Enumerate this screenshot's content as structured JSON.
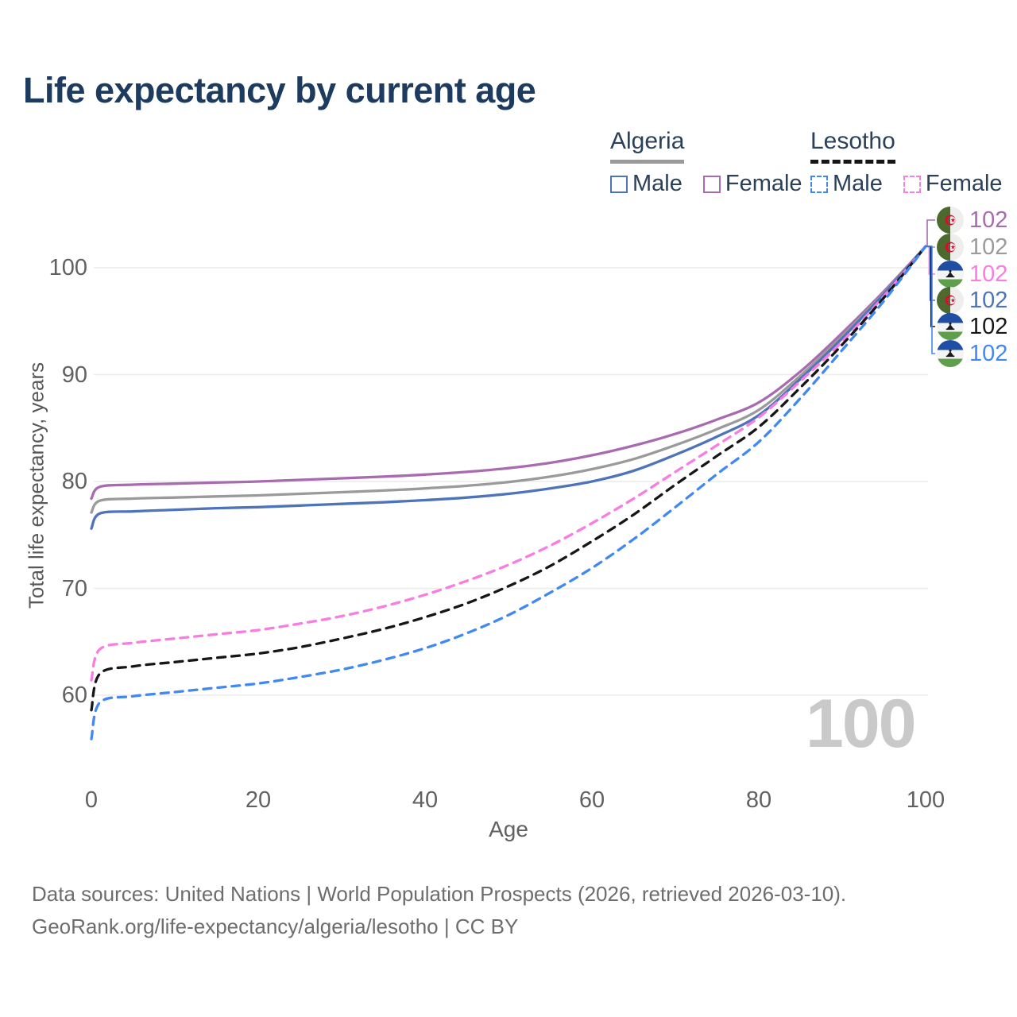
{
  "title": "Life expectancy by current age",
  "legend": {
    "groups": [
      {
        "country": "Algeria",
        "line_style": "solid",
        "underline_color": "#9a9a9a",
        "items": [
          {
            "label": "Male",
            "color": "#4d74bb"
          },
          {
            "label": "Female",
            "color": "#a86bb0"
          }
        ]
      },
      {
        "country": "Lesotho",
        "line_style": "dashed",
        "underline_color": "#161616",
        "items": [
          {
            "label": "Male",
            "color": "#4189f2"
          },
          {
            "label": "Female",
            "color": "#f97ce0"
          }
        ]
      }
    ]
  },
  "y_axis": {
    "label": "Total life expectancy, years",
    "ticks": [
      100,
      90,
      80,
      70,
      60
    ]
  },
  "x_axis": {
    "label": "Age",
    "ticks": [
      0,
      20,
      40,
      60,
      80,
      100
    ]
  },
  "watermark": "100",
  "end_labels": [
    {
      "value": "102",
      "flag": "algeria",
      "series": "Algeria Female",
      "color": "#a86bb0"
    },
    {
      "value": "102",
      "flag": "algeria",
      "series": "Algeria Both sexes",
      "color": "#9a9a9a"
    },
    {
      "value": "102",
      "flag": "lesotho",
      "series": "Lesotho Female",
      "color": "#f97ce0"
    },
    {
      "value": "102",
      "flag": "algeria",
      "series": "Algeria Male",
      "color": "#4d74bb"
    },
    {
      "value": "102",
      "flag": "lesotho",
      "series": "Lesotho Both sexes",
      "color": "#161616"
    },
    {
      "value": "102",
      "flag": "lesotho",
      "series": "Lesotho Male",
      "color": "#4189f2"
    }
  ],
  "footer": {
    "line1": "Data sources: United Nations | World Population Prospects (2026, retrieved 2026-03-10).",
    "line2": "GeoRank.org/life-expectancy/algeria/lesotho | CC BY"
  },
  "chart_data": {
    "type": "line",
    "title": "Life expectancy by current age",
    "xlabel": "Age",
    "ylabel": "Total life expectancy, years",
    "xlim": [
      0,
      100
    ],
    "ylim": [
      55,
      103
    ],
    "x_ticks": [
      0,
      20,
      40,
      60,
      80,
      100
    ],
    "y_ticks": [
      60,
      70,
      80,
      90,
      100
    ],
    "grid": "horizontal",
    "legend_position": "top-right",
    "end_value_all_series": 102,
    "series": [
      {
        "name": "Algeria Female",
        "country": "Algeria",
        "sex": "Female",
        "color": "#a86bb0",
        "dash": "solid",
        "points": [
          [
            0,
            78.4
          ],
          [
            1,
            79.5
          ],
          [
            5,
            79.7
          ],
          [
            10,
            79.8
          ],
          [
            15,
            79.9
          ],
          [
            20,
            80.0
          ],
          [
            25,
            80.15
          ],
          [
            30,
            80.3
          ],
          [
            35,
            80.45
          ],
          [
            40,
            80.65
          ],
          [
            45,
            80.9
          ],
          [
            50,
            81.25
          ],
          [
            55,
            81.75
          ],
          [
            60,
            82.45
          ],
          [
            65,
            83.35
          ],
          [
            70,
            84.45
          ],
          [
            75,
            85.8
          ],
          [
            80,
            87.4
          ],
          [
            85,
            90.3
          ],
          [
            90,
            93.9
          ],
          [
            95,
            97.8
          ],
          [
            100,
            102
          ]
        ]
      },
      {
        "name": "Algeria Both sexes",
        "country": "Algeria",
        "sex": "Both",
        "color": "#9a9a9a",
        "dash": "solid",
        "points": [
          [
            0,
            77.1
          ],
          [
            1,
            78.2
          ],
          [
            5,
            78.4
          ],
          [
            10,
            78.5
          ],
          [
            15,
            78.6
          ],
          [
            20,
            78.7
          ],
          [
            25,
            78.85
          ],
          [
            30,
            79.0
          ],
          [
            35,
            79.15
          ],
          [
            40,
            79.35
          ],
          [
            45,
            79.6
          ],
          [
            50,
            79.95
          ],
          [
            55,
            80.45
          ],
          [
            60,
            81.15
          ],
          [
            65,
            82.1
          ],
          [
            70,
            83.4
          ],
          [
            75,
            84.9
          ],
          [
            80,
            86.7
          ],
          [
            85,
            89.9
          ],
          [
            90,
            93.6
          ],
          [
            95,
            97.65
          ],
          [
            100,
            102
          ]
        ]
      },
      {
        "name": "Algeria Male",
        "country": "Algeria",
        "sex": "Male",
        "color": "#4d74bb",
        "dash": "solid",
        "points": [
          [
            0,
            75.6
          ],
          [
            1,
            77.0
          ],
          [
            5,
            77.2
          ],
          [
            10,
            77.35
          ],
          [
            15,
            77.5
          ],
          [
            20,
            77.6
          ],
          [
            25,
            77.75
          ],
          [
            30,
            77.9
          ],
          [
            35,
            78.05
          ],
          [
            40,
            78.25
          ],
          [
            45,
            78.5
          ],
          [
            50,
            78.85
          ],
          [
            55,
            79.35
          ],
          [
            60,
            80.0
          ],
          [
            65,
            81.0
          ],
          [
            70,
            82.5
          ],
          [
            75,
            84.2
          ],
          [
            80,
            86.2
          ],
          [
            85,
            89.6
          ],
          [
            90,
            93.4
          ],
          [
            95,
            97.55
          ],
          [
            100,
            102
          ]
        ]
      },
      {
        "name": "Lesotho Female",
        "country": "Lesotho",
        "sex": "Female",
        "color": "#f97ce0",
        "dash": "dashed",
        "points": [
          [
            0,
            61.4
          ],
          [
            1,
            64.3
          ],
          [
            5,
            64.9
          ],
          [
            10,
            65.3
          ],
          [
            15,
            65.7
          ],
          [
            20,
            66.1
          ],
          [
            25,
            66.7
          ],
          [
            30,
            67.4
          ],
          [
            35,
            68.3
          ],
          [
            40,
            69.4
          ],
          [
            45,
            70.7
          ],
          [
            50,
            72.2
          ],
          [
            55,
            74.0
          ],
          [
            60,
            76.1
          ],
          [
            65,
            78.4
          ],
          [
            70,
            80.9
          ],
          [
            75,
            83.4
          ],
          [
            80,
            86.0
          ],
          [
            85,
            89.4
          ],
          [
            90,
            93.1
          ],
          [
            95,
            97.35
          ],
          [
            100,
            102
          ]
        ]
      },
      {
        "name": "Lesotho Both sexes",
        "country": "Lesotho",
        "sex": "Both",
        "color": "#161616",
        "dash": "dashed",
        "points": [
          [
            0,
            58.6
          ],
          [
            1,
            62.0
          ],
          [
            5,
            62.7
          ],
          [
            10,
            63.1
          ],
          [
            15,
            63.5
          ],
          [
            20,
            63.9
          ],
          [
            25,
            64.5
          ],
          [
            30,
            65.3
          ],
          [
            35,
            66.2
          ],
          [
            40,
            67.3
          ],
          [
            45,
            68.6
          ],
          [
            50,
            70.2
          ],
          [
            55,
            72.1
          ],
          [
            60,
            74.4
          ],
          [
            65,
            76.9
          ],
          [
            70,
            79.7
          ],
          [
            75,
            82.4
          ],
          [
            80,
            85.1
          ],
          [
            85,
            88.8
          ],
          [
            90,
            92.8
          ],
          [
            95,
            97.2
          ],
          [
            100,
            102
          ]
        ]
      },
      {
        "name": "Lesotho Male",
        "country": "Lesotho",
        "sex": "Male",
        "color": "#4189f2",
        "dash": "dashed",
        "points": [
          [
            0,
            55.9
          ],
          [
            1,
            59.3
          ],
          [
            5,
            59.9
          ],
          [
            10,
            60.3
          ],
          [
            15,
            60.7
          ],
          [
            20,
            61.1
          ],
          [
            25,
            61.7
          ],
          [
            30,
            62.4
          ],
          [
            35,
            63.3
          ],
          [
            40,
            64.4
          ],
          [
            45,
            65.8
          ],
          [
            50,
            67.5
          ],
          [
            55,
            69.6
          ],
          [
            60,
            71.9
          ],
          [
            65,
            74.6
          ],
          [
            70,
            77.6
          ],
          [
            75,
            80.7
          ],
          [
            80,
            83.7
          ],
          [
            85,
            87.8
          ],
          [
            90,
            92.3
          ],
          [
            95,
            96.9
          ],
          [
            100,
            102
          ]
        ]
      }
    ]
  }
}
